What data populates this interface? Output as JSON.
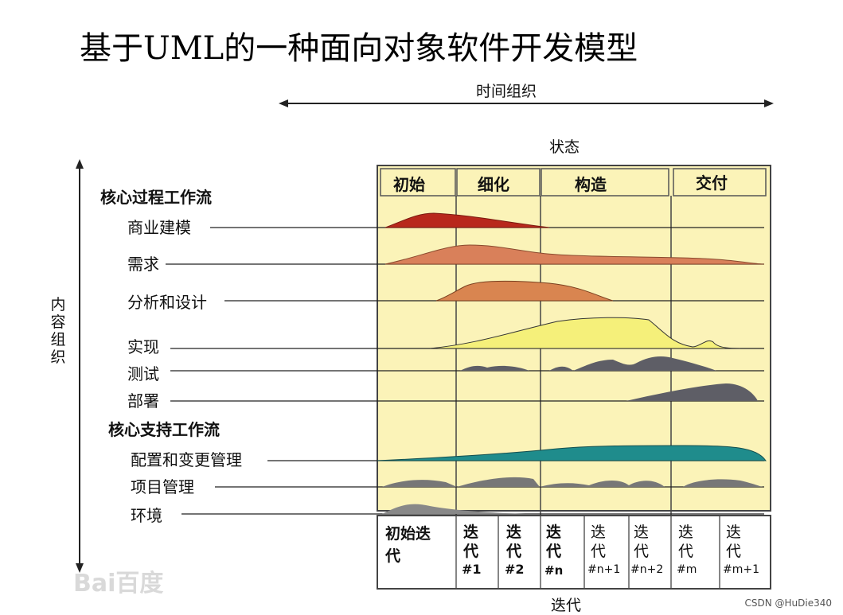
{
  "title": "基于UML的一种面向对象软件开发模型",
  "axes": {
    "time_label": "时间组织",
    "content_label": "内容组织",
    "phase_header": "状态",
    "iteration_footer": "迭代"
  },
  "phases": [
    "初始",
    "细化",
    "构造",
    "交付"
  ],
  "process_group": "核心过程工作流",
  "support_group": "核心支持工作流",
  "process_workflows": [
    "商业建模",
    "需求",
    "分析和设计",
    "实现",
    "测试",
    "部署"
  ],
  "support_workflows": [
    "配置和变更管理",
    "项目管理",
    "环境"
  ],
  "iterations": [
    {
      "top": "初始迭",
      "bottom": "代"
    },
    {
      "top": "迭",
      "mid": "代",
      "bottom": "#1"
    },
    {
      "top": "迭",
      "mid": "代",
      "bottom": "#2"
    },
    {
      "top": "迭",
      "mid": "代",
      "bottom": "#n"
    },
    {
      "top": "迭",
      "mid": "代",
      "bottom": "#n+1"
    },
    {
      "top": "迭",
      "mid": "代",
      "bottom": "#n+2"
    },
    {
      "top": "迭",
      "mid": "代",
      "bottom": "#m"
    },
    {
      "top": "迭",
      "mid": "代",
      "bottom": "#m+1"
    }
  ],
  "watermark": "Bai百度",
  "credit": "CSDN @HuDie340",
  "colors": {
    "chart_bg": "#fbf3b8",
    "business": "#b8281c",
    "requirements": "#d9805a",
    "analysis": "#d98550",
    "implementation": "#f5f07a",
    "testing": "#5e5e66",
    "deployment": "#5e5e66",
    "config": "#1f8c8c",
    "project": "#777777",
    "environment": "#888888"
  }
}
